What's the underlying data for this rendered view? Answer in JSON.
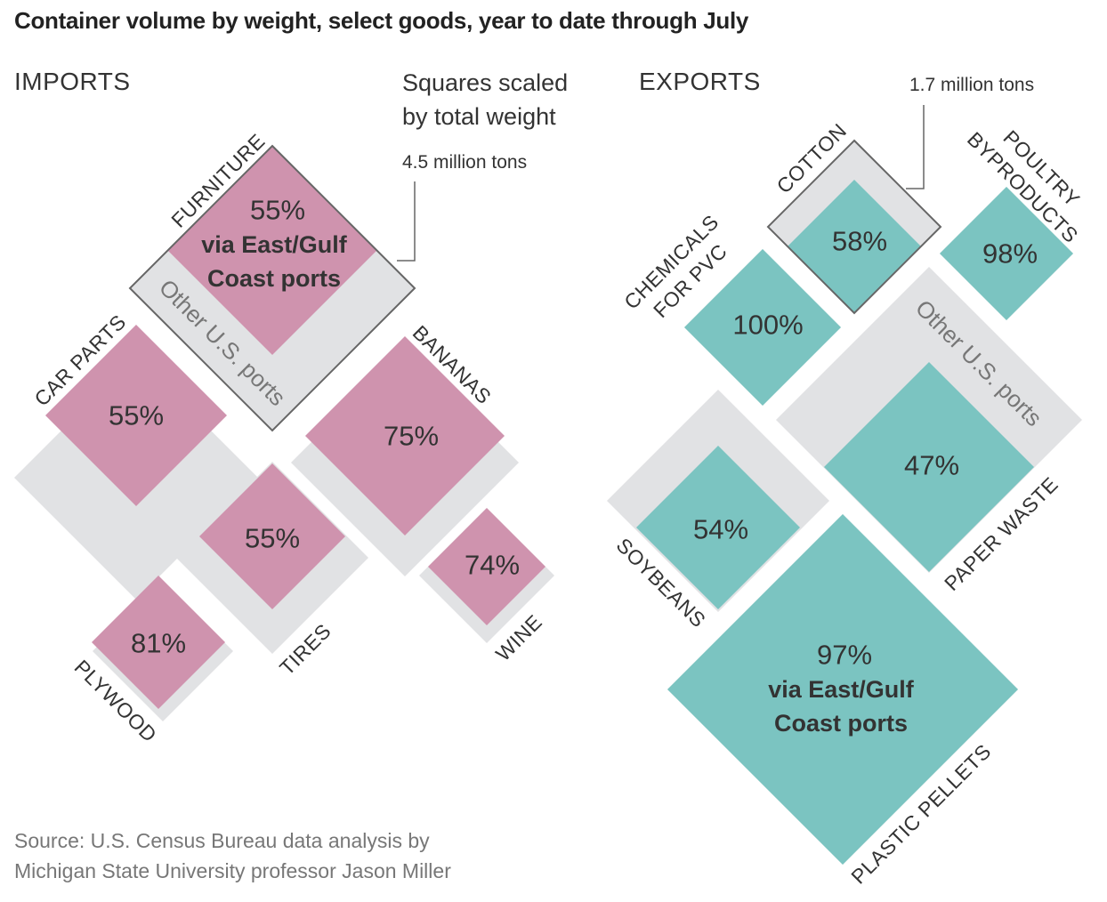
{
  "title": "Container volume by weight, select goods, year to date through July",
  "imports_label": "IMPORTS",
  "exports_label": "EXPORTS",
  "scale_note": [
    "Squares scaled",
    "by total weight"
  ],
  "reference_labels": {
    "imports": "4.5 million tons",
    "exports": "1.7 million tons"
  },
  "other_ports_label": "Other U.S. ports",
  "via_label": [
    "via East/Gulf",
    "Coast ports"
  ],
  "source": [
    "Source: U.S. Census Bureau data analysis by",
    "Michigan State University professor Jason Miller"
  ],
  "colors": {
    "imports": "#cf93ae",
    "exports": "#7bc4c1",
    "other_ports": "#e1e2e4",
    "outline": "#666666",
    "text": "#333333"
  },
  "chart_data": [
    {
      "type": "treemap-diamond",
      "panel": "IMPORTS",
      "size_encoding": "square area scaled by total weight",
      "value_label": "share via East/Gulf Coast ports (%)",
      "reference": {
        "item": "FURNITURE",
        "total_weight": "4.5 million tons"
      },
      "items": [
        {
          "name": "FURNITURE",
          "pct_east_gulf": 55
        },
        {
          "name": "CAR PARTS",
          "pct_east_gulf": 55
        },
        {
          "name": "BANANAS",
          "pct_east_gulf": 75
        },
        {
          "name": "TIRES",
          "pct_east_gulf": 55
        },
        {
          "name": "WINE",
          "pct_east_gulf": 74
        },
        {
          "name": "PLYWOOD",
          "pct_east_gulf": 81
        }
      ]
    },
    {
      "type": "treemap-diamond",
      "panel": "EXPORTS",
      "size_encoding": "square area scaled by total weight",
      "value_label": "share via East/Gulf Coast ports (%)",
      "reference": {
        "item": "COTTON",
        "total_weight": "1.7 million tons"
      },
      "items": [
        {
          "name": "COTTON",
          "pct_east_gulf": 58
        },
        {
          "name": "POULTRY BYPRODUCTS",
          "pct_east_gulf": 98
        },
        {
          "name": "CHEMICALS FOR PVC",
          "pct_east_gulf": 100
        },
        {
          "name": "PAPER WASTE",
          "pct_east_gulf": 47
        },
        {
          "name": "SOYBEANS",
          "pct_east_gulf": 54
        },
        {
          "name": "PLASTIC PELLETS",
          "pct_east_gulf": 97
        }
      ]
    }
  ]
}
